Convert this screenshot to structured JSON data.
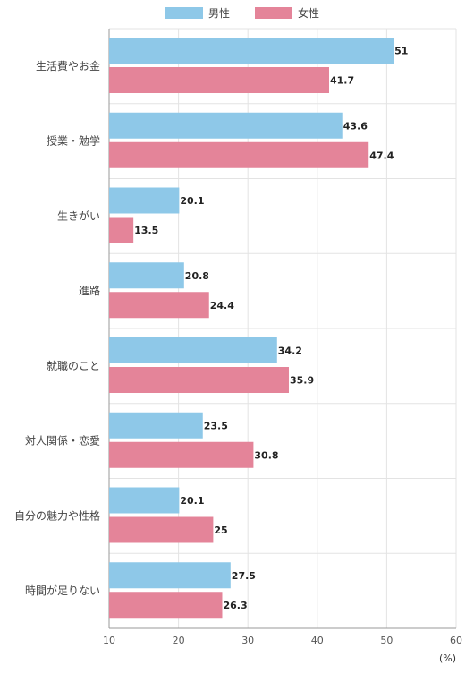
{
  "chart_data": {
    "type": "bar",
    "orientation": "horizontal",
    "categories": [
      "生活費やお金",
      "授業・勉学",
      "生きがい",
      "進路",
      "就職のこと",
      "対人関係・恋愛",
      "自分の魅力や性格",
      "時間が足りない"
    ],
    "series": [
      {
        "name": "男性",
        "color": "#8ec8e8",
        "values": [
          51,
          43.6,
          20.1,
          20.8,
          34.2,
          23.5,
          20.1,
          27.5
        ]
      },
      {
        "name": "女性",
        "color": "#e48499",
        "values": [
          41.7,
          47.4,
          13.5,
          24.4,
          35.9,
          30.8,
          25,
          26.3
        ]
      }
    ],
    "x_ticks": [
      "10",
      "20",
      "30",
      "40",
      "50",
      "60"
    ],
    "xlim": [
      10,
      60
    ],
    "unit_label": "(%)",
    "grid": true,
    "legend_position": "top-center"
  }
}
